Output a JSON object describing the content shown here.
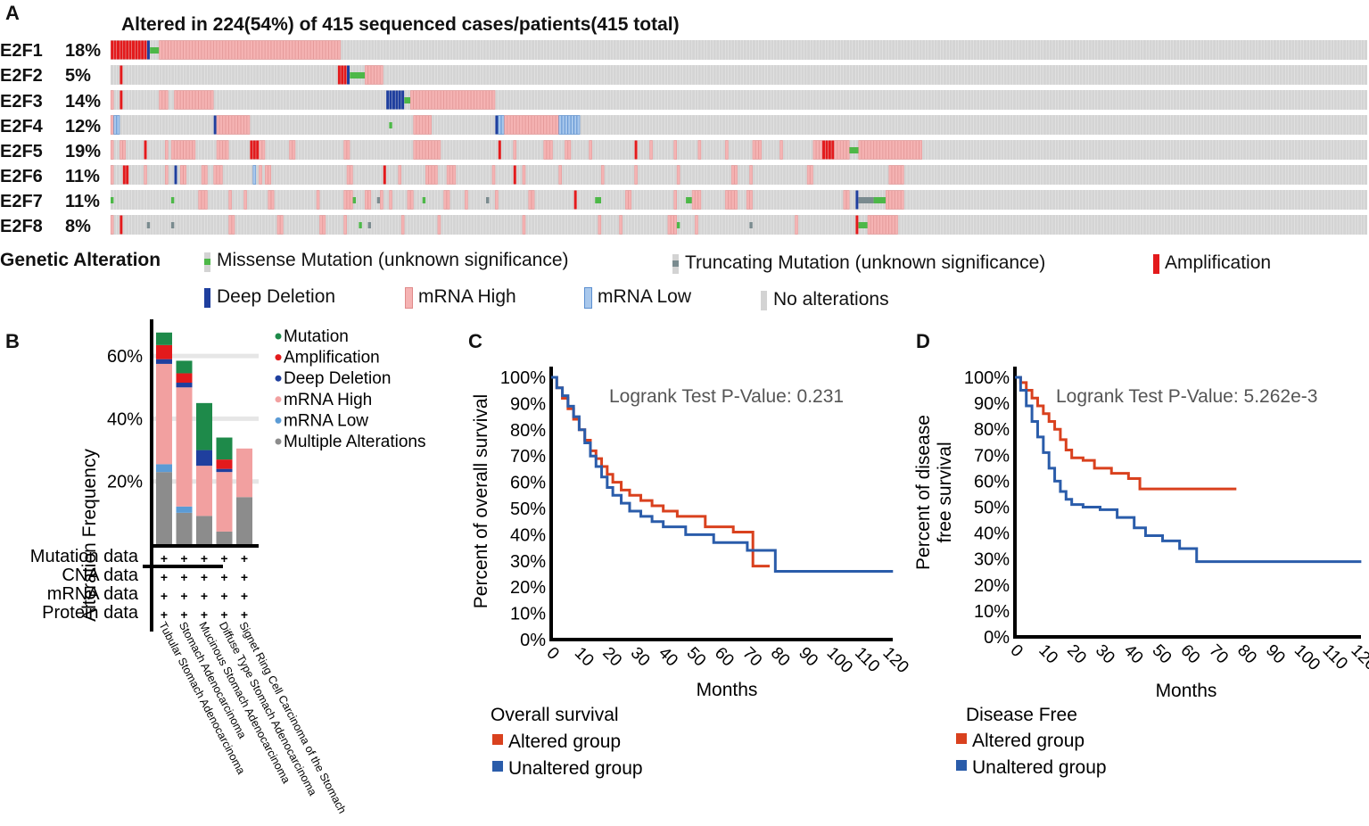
{
  "panel_letters": {
    "a": "A",
    "b": "B",
    "c": "C",
    "d": "D"
  },
  "oncoprint": {
    "title": "Altered in 224(54%) of 415 sequenced cases/patients(415 total)",
    "genes": [
      {
        "name": "E2F1",
        "pct": "18%"
      },
      {
        "name": "E2F2",
        "pct": "5%"
      },
      {
        "name": "E2F3",
        "pct": "14%"
      },
      {
        "name": "E2F4",
        "pct": "12%"
      },
      {
        "name": "E2F5",
        "pct": "19%"
      },
      {
        "name": "E2F6",
        "pct": "11%"
      },
      {
        "name": "E2F7",
        "pct": "11%"
      },
      {
        "name": "E2F8",
        "pct": "8%"
      }
    ],
    "legend_title": "Genetic Alteration",
    "legend": [
      {
        "label": "Missense Mutation (unknown significance)",
        "color": "#4db848"
      },
      {
        "label": "Truncating Mutation (unknown significance)",
        "color": "#7a8b8f"
      },
      {
        "label": "Amplification",
        "color": "#e31a1c"
      },
      {
        "label": "Deep Deletion",
        "color": "#1f3f9e"
      },
      {
        "label": "mRNA High",
        "color": "#f5b3b3"
      },
      {
        "label": "mRNA Low",
        "color": "#a9c8ec"
      },
      {
        "label": "No alterations",
        "color": "#d3d3d3"
      }
    ]
  },
  "chart_data": [
    {
      "type": "bar",
      "id": "B",
      "title": "",
      "ylabel": "Alteration Frequency",
      "ylim": [
        0,
        70
      ],
      "yticks": [
        "20%",
        "40%",
        "60%"
      ],
      "categories": [
        "Tubular Stomach Adenocarcinoma",
        "Stomach Adenocarcinoma",
        "Mucinous Stomach Adenocarcinoma",
        "Diffuse Type Stomach Adenocarcinoma",
        "Signet Ring Cell Carcinoma of the Stomach"
      ],
      "series": [
        {
          "name": "Multiple Alterations",
          "color": "#8c8c8c",
          "values": [
            23,
            10,
            9,
            4,
            15
          ]
        },
        {
          "name": "mRNA Low",
          "color": "#5b9bd5",
          "values": [
            2.5,
            2,
            0,
            0,
            0
          ]
        },
        {
          "name": "mRNA High",
          "color": "#f2a0a0",
          "values": [
            32,
            38,
            16,
            19,
            15.5
          ]
        },
        {
          "name": "Deep Deletion",
          "color": "#1f3f9e",
          "values": [
            1.5,
            1.5,
            5,
            1,
            0
          ]
        },
        {
          "name": "Amplification",
          "color": "#e31a1c",
          "values": [
            4.5,
            3,
            0,
            3,
            0
          ]
        },
        {
          "name": "Mutation",
          "color": "#1e8a4a",
          "values": [
            4,
            4,
            15,
            7,
            0
          ]
        }
      ],
      "legend": [
        "Mutation",
        "Amplification",
        "Deep Deletion",
        "mRNA High",
        "mRNA Low",
        "Multiple Alterations"
      ],
      "data_rows": [
        {
          "label": "Mutation data",
          "marks": [
            "+",
            "+",
            "+",
            "+",
            "+"
          ]
        },
        {
          "label": "CNA data",
          "marks": [
            "+",
            "+",
            "+",
            "+",
            "+"
          ]
        },
        {
          "label": "mRNA data",
          "marks": [
            "+",
            "+",
            "+",
            "+",
            "+"
          ]
        },
        {
          "label": "Protein data",
          "marks": [
            "+",
            "+",
            "+",
            "+",
            "+"
          ]
        }
      ]
    },
    {
      "type": "line",
      "id": "C",
      "xlabel": "Months",
      "ylabel": "Percent of overall survival",
      "xlim": [
        0,
        120
      ],
      "ylim": [
        0,
        100
      ],
      "xticks": [
        0,
        10,
        20,
        30,
        40,
        50,
        60,
        70,
        80,
        90,
        100,
        110,
        120
      ],
      "yticks": [
        "0%",
        "10%",
        "20%",
        "30%",
        "40%",
        "50%",
        "60%",
        "70%",
        "80%",
        "90%",
        "100%"
      ],
      "annotation": "Logrank Test P-Value: 0.231",
      "legend_title": "Overall survival",
      "series": [
        {
          "name": "Altered group",
          "color": "#d9411e",
          "x": [
            0,
            2,
            4,
            6,
            8,
            10,
            12,
            14,
            16,
            18,
            20,
            22,
            25,
            28,
            32,
            36,
            40,
            45,
            55,
            65,
            72,
            75,
            78
          ],
          "y": [
            100,
            96,
            92,
            88,
            84,
            80,
            76,
            72,
            69,
            66,
            63,
            60,
            57,
            55,
            53,
            51,
            49,
            47,
            43,
            41,
            28,
            28,
            28
          ]
        },
        {
          "name": "Unaltered group",
          "color": "#2a5caa",
          "x": [
            0,
            2,
            4,
            6,
            8,
            10,
            12,
            14,
            16,
            18,
            20,
            22,
            25,
            28,
            32,
            36,
            40,
            48,
            58,
            70,
            80,
            100,
            122
          ],
          "y": [
            100,
            96,
            93,
            89,
            85,
            80,
            75,
            70,
            66,
            62,
            58,
            55,
            52,
            49,
            47,
            45,
            43,
            40,
            37,
            34,
            26,
            26,
            26
          ]
        }
      ]
    },
    {
      "type": "line",
      "id": "D",
      "xlabel": "Months",
      "ylabel": "Percent of disease free survival",
      "ylabel_lines": [
        "Percent of disease",
        "free survival"
      ],
      "xlim": [
        0,
        120
      ],
      "ylim": [
        0,
        100
      ],
      "xticks": [
        0,
        10,
        20,
        30,
        40,
        50,
        60,
        70,
        80,
        90,
        100,
        110,
        120
      ],
      "yticks": [
        "0%",
        "10%",
        "20%",
        "30%",
        "40%",
        "50%",
        "60%",
        "70%",
        "80%",
        "90%",
        "100%"
      ],
      "annotation": "Logrank Test P-Value: 5.262e-3",
      "legend_title": "Disease Free",
      "series": [
        {
          "name": "Altered group",
          "color": "#d9411e",
          "x": [
            0,
            2,
            4,
            6,
            8,
            10,
            12,
            14,
            16,
            18,
            20,
            24,
            28,
            34,
            40,
            44,
            60,
            78
          ],
          "y": [
            100,
            98,
            95,
            92,
            89,
            86,
            83,
            80,
            76,
            72,
            69,
            68,
            65,
            63,
            61,
            57,
            57,
            57
          ]
        },
        {
          "name": "Unaltered group",
          "color": "#2a5caa",
          "x": [
            0,
            2,
            4,
            6,
            8,
            10,
            12,
            14,
            16,
            18,
            20,
            24,
            30,
            36,
            42,
            46,
            52,
            58,
            64,
            80,
            100,
            122
          ],
          "y": [
            100,
            95,
            89,
            83,
            77,
            71,
            65,
            60,
            56,
            53,
            51,
            50,
            49,
            46,
            42,
            39,
            37,
            34,
            29,
            29,
            29,
            29
          ]
        }
      ]
    }
  ]
}
